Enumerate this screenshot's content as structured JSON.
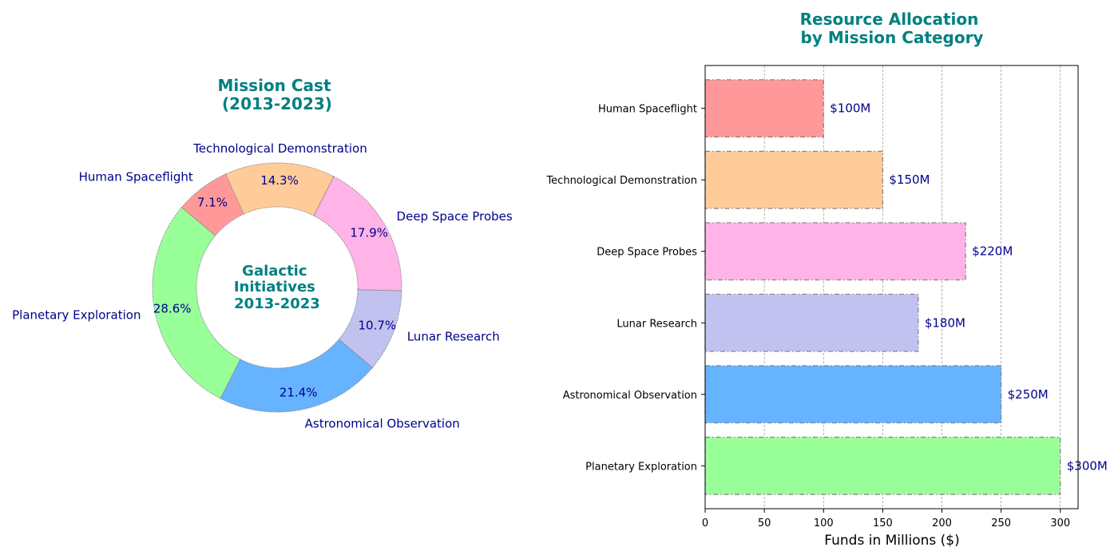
{
  "chart_data": [
    {
      "type": "pie",
      "style": "donut",
      "title": "Mission Cast\n(2013-2023)",
      "center_text": "Galactic\nInitiatives\n2013-2023",
      "slices": [
        {
          "label": "Planetary Exploration",
          "value": 28.6,
          "pct_text": "28.6%",
          "color": "#99ff99"
        },
        {
          "label": "Astronomical Observation",
          "value": 21.4,
          "pct_text": "21.4%",
          "color": "#66b3ff"
        },
        {
          "label": "Lunar Research",
          "value": 10.7,
          "pct_text": "10.7%",
          "color": "#c2c2f0"
        },
        {
          "label": "Deep Space Probes",
          "value": 17.9,
          "pct_text": "17.9%",
          "color": "#ffb3e6"
        },
        {
          "label": "Technological Demonstration",
          "value": 14.3,
          "pct_text": "14.3%",
          "color": "#ffcc99"
        },
        {
          "label": "Human Spaceflight",
          "value": 7.1,
          "pct_text": "7.1%",
          "color": "#ff9999"
        }
      ]
    },
    {
      "type": "bar",
      "orientation": "horizontal",
      "title": "Resource Allocation\nby Mission Category",
      "xlabel": "Funds in Millions ($)",
      "xlim": [
        0,
        315
      ],
      "xticks": [
        0,
        50,
        100,
        150,
        200,
        250,
        300
      ],
      "grid": "vertical dashed",
      "categories": [
        "Planetary Exploration",
        "Astronomical Observation",
        "Lunar Research",
        "Deep Space Probes",
        "Technological Demonstration",
        "Human Spaceflight"
      ],
      "values": [
        300,
        250,
        180,
        220,
        150,
        100
      ],
      "value_labels": [
        "$300M",
        "$250M",
        "$180M",
        "$220M",
        "$150M",
        "$100M"
      ],
      "colors": [
        "#99ff99",
        "#66b3ff",
        "#c2c2f0",
        "#ffb3e6",
        "#ffcc99",
        "#ff9999"
      ]
    }
  ]
}
